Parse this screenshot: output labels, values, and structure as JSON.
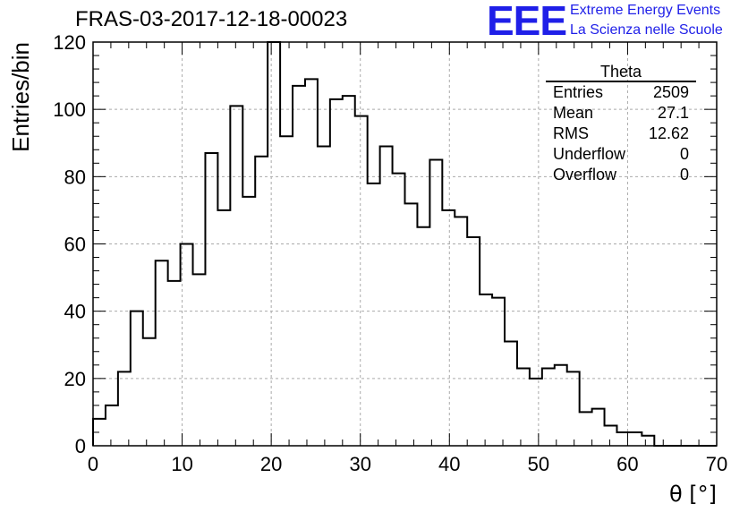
{
  "title": "FRAS-03-2017-12-18-00023",
  "logo": {
    "mark": "EEE",
    "line1": "Extreme Energy Events",
    "line2": "La Scienza nelle Scuole",
    "color": "#1f1fe8"
  },
  "stats": {
    "title": "Theta",
    "rows": [
      {
        "label": "Entries",
        "value": "2509"
      },
      {
        "label": "Mean",
        "value": "27.1"
      },
      {
        "label": "RMS",
        "value": "12.62"
      },
      {
        "label": "Underflow",
        "value": "0"
      },
      {
        "label": "Overflow",
        "value": "0"
      }
    ]
  },
  "chart_data": {
    "type": "histogram",
    "xlabel": "θ [°]",
    "ylabel": "Entries/bin",
    "xlim": [
      0,
      70
    ],
    "ylim": [
      0,
      120
    ],
    "bin_width": 1.4,
    "x_ticks": [
      0,
      10,
      20,
      30,
      40,
      50,
      60,
      70
    ],
    "y_ticks": [
      0,
      20,
      40,
      60,
      80,
      100,
      120
    ],
    "grid": true,
    "values": [
      8,
      12,
      22,
      40,
      32,
      55,
      49,
      60,
      51,
      87,
      70,
      101,
      74,
      86,
      120,
      92,
      107,
      109,
      89,
      103,
      104,
      98,
      78,
      89,
      81,
      72,
      65,
      85,
      70,
      68,
      62,
      45,
      44,
      31,
      23,
      20,
      23,
      24,
      22,
      10,
      11,
      6,
      4,
      4,
      3,
      0,
      0,
      0,
      0,
      0
    ]
  }
}
